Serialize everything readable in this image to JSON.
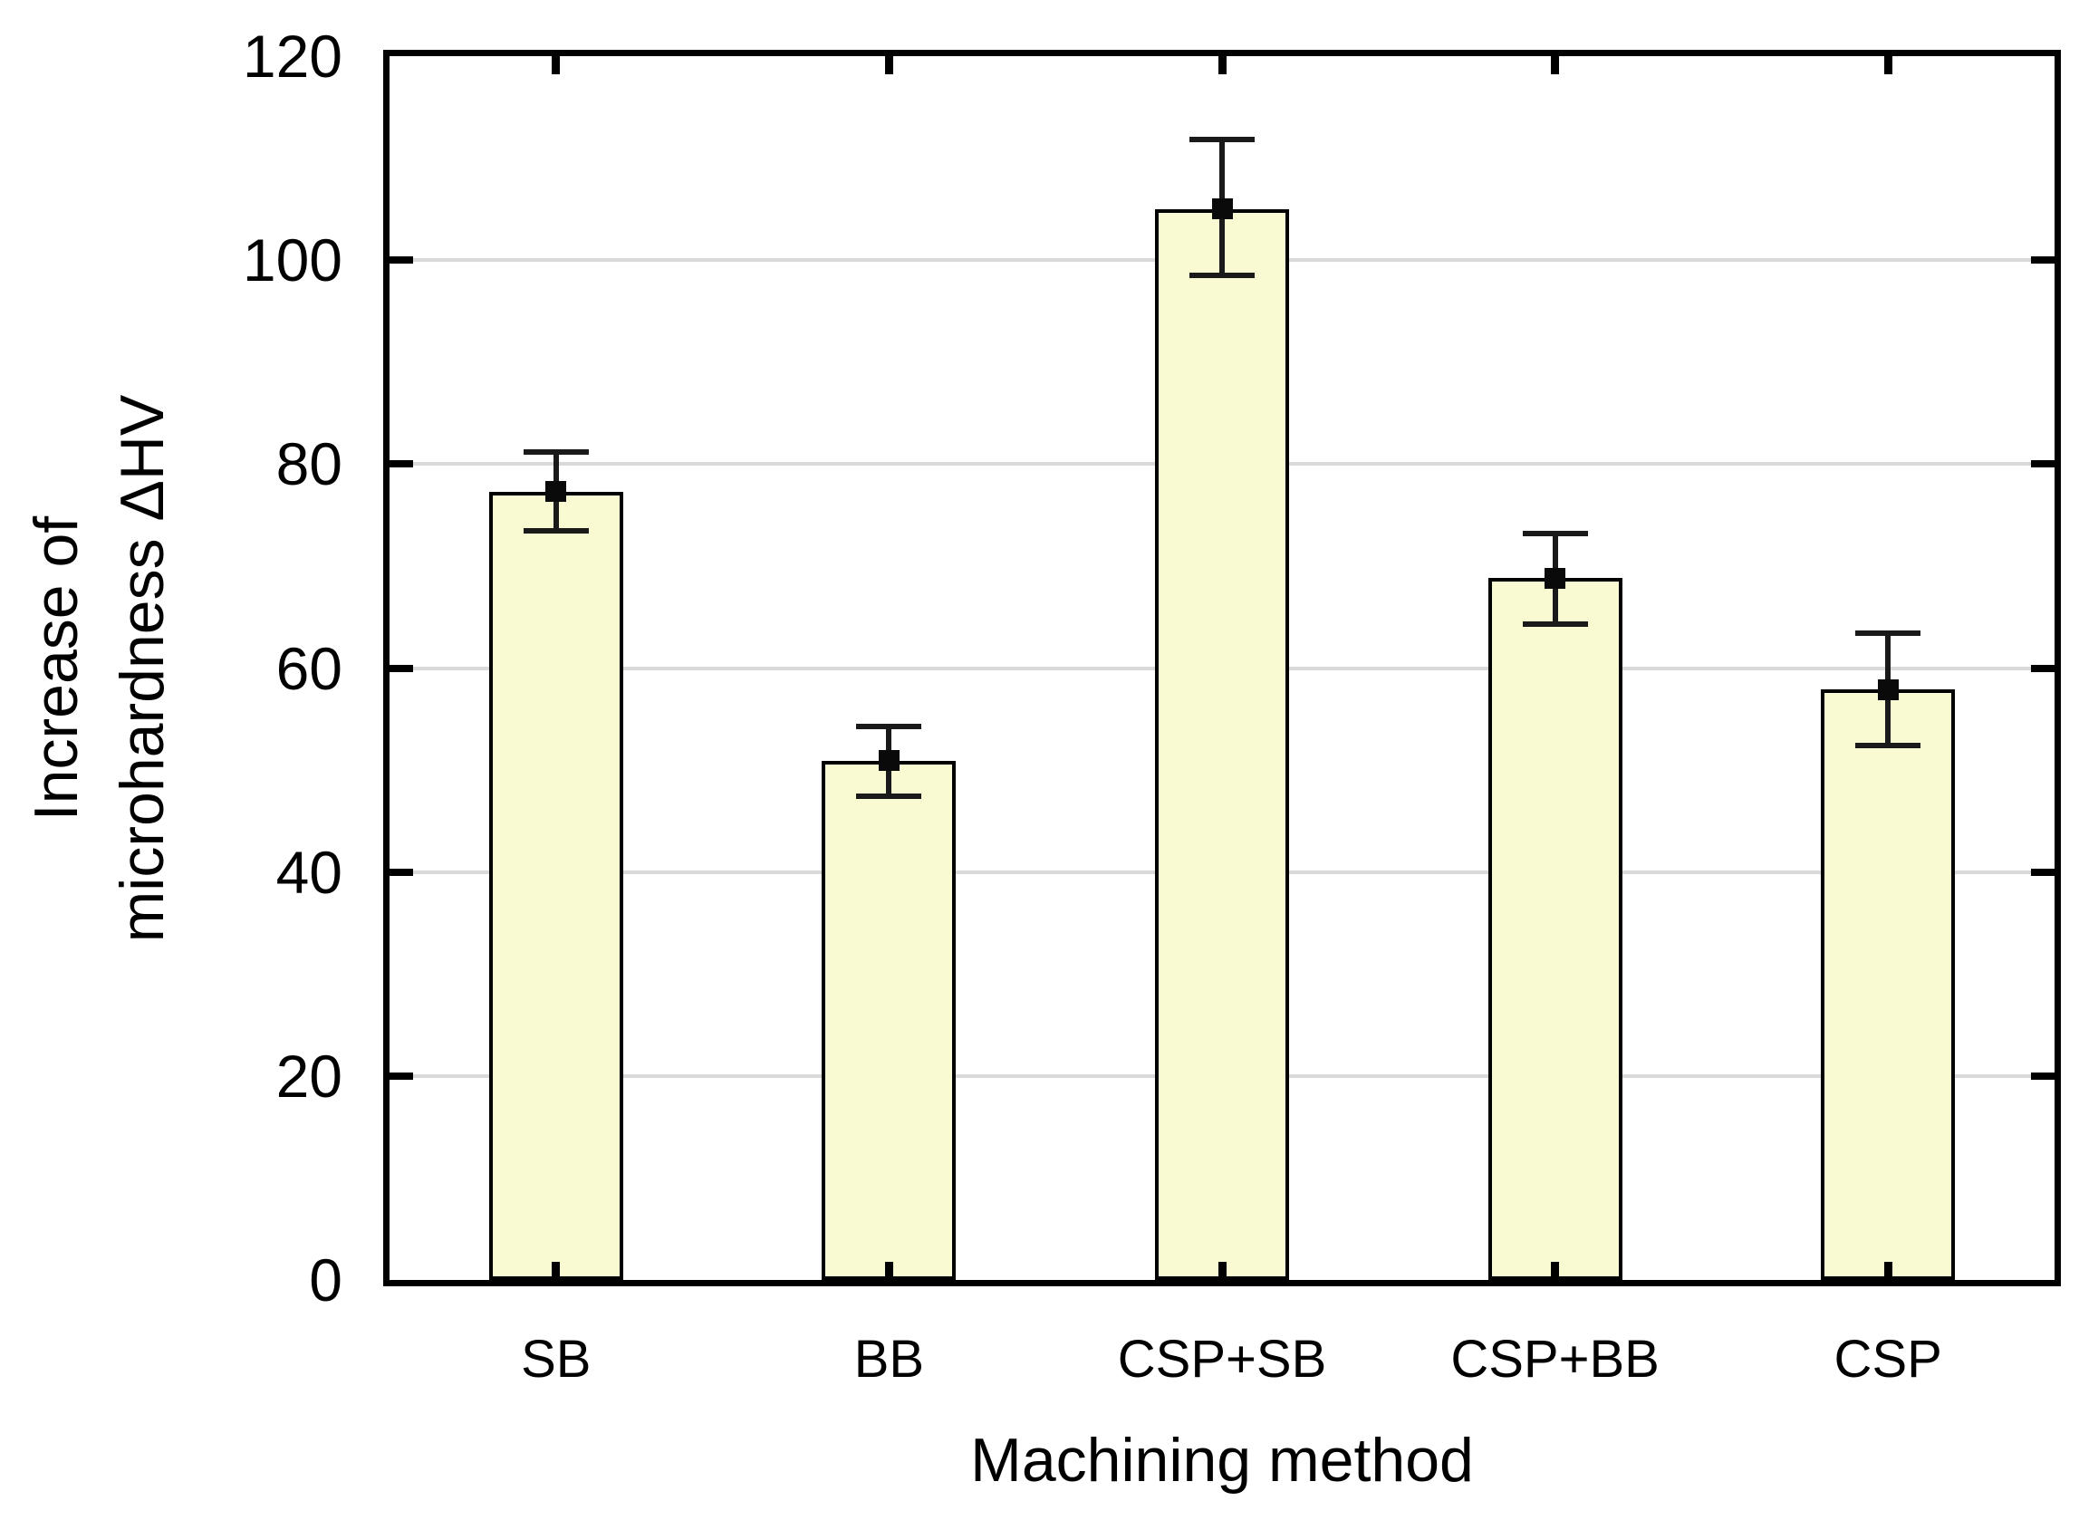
{
  "chart_data": {
    "type": "bar",
    "title": "",
    "categories": [
      "SB",
      "BB",
      "CSP+SB",
      "CSP+BB",
      "CSP"
    ],
    "series": [
      {
        "name": "Increase of microhardness ΔHV",
        "values": [
          77.3,
          50.9,
          105.0,
          68.8,
          57.9
        ],
        "error_plus": [
          3.9,
          3.4,
          6.8,
          4.4,
          5.5
        ],
        "error_minus": [
          3.8,
          3.5,
          6.5,
          4.5,
          5.5
        ]
      }
    ],
    "xlabel": "Machining method",
    "ylabel_lines": [
      "Increase of",
      "microhardness ΔHV"
    ],
    "ylabel": "Increase of microhardness ΔHV",
    "ylim": [
      0,
      120
    ],
    "yticks": [
      0,
      20,
      40,
      60,
      80,
      100,
      120
    ],
    "gridline_values": [
      20,
      40,
      60,
      80,
      100
    ],
    "grid": "horizontal",
    "legend": "none",
    "marker": "filled-square",
    "error_caps": true,
    "colors": {
      "bar_fill": "#FAFAD2",
      "bar_border": "#000000",
      "error_bar": "#1A1A1A",
      "marker": "#0A0A0A",
      "grid": "#D9D9D9",
      "axis": "#000000",
      "background": "#FFFFFF",
      "text": "#000000"
    }
  }
}
